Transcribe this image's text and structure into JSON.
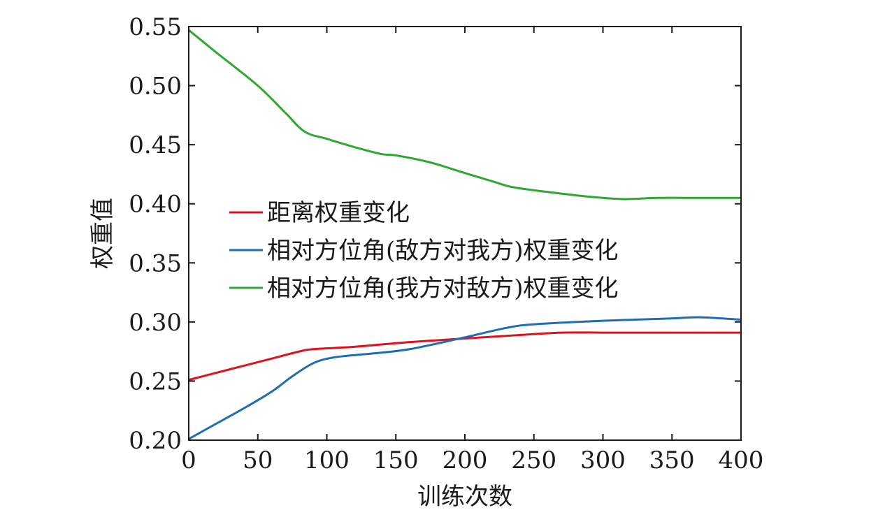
{
  "chart_data": {
    "type": "line",
    "xlabel": "训练次数",
    "ylabel": "权重值",
    "xlim": [
      0,
      400
    ],
    "ylim": [
      0.2,
      0.55
    ],
    "xticks": [
      0,
      50,
      100,
      150,
      200,
      250,
      300,
      350,
      400
    ],
    "yticks": [
      "0.20",
      "0.25",
      "0.30",
      "0.35",
      "0.40",
      "0.45",
      "0.50",
      "0.55"
    ],
    "grid": false,
    "legend_position": "center-left",
    "series": [
      {
        "name": "距离权重变化",
        "color": "#e0101e",
        "points": [
          [
            0,
            0.251
          ],
          [
            20,
            0.257
          ],
          [
            40,
            0.263
          ],
          [
            60,
            0.269
          ],
          [
            80,
            0.275
          ],
          [
            90,
            0.277
          ],
          [
            120,
            0.279
          ],
          [
            160,
            0.283
          ],
          [
            200,
            0.286
          ],
          [
            240,
            0.289
          ],
          [
            270,
            0.291
          ],
          [
            300,
            0.291
          ],
          [
            350,
            0.291
          ],
          [
            400,
            0.291
          ]
        ]
      },
      {
        "name": "相对方位角(敌方对我方)权重变化",
        "color": "#1f6db5",
        "points": [
          [
            0,
            0.201
          ],
          [
            20,
            0.214
          ],
          [
            40,
            0.227
          ],
          [
            60,
            0.241
          ],
          [
            75,
            0.254
          ],
          [
            90,
            0.265
          ],
          [
            105,
            0.27
          ],
          [
            130,
            0.273
          ],
          [
            160,
            0.277
          ],
          [
            200,
            0.287
          ],
          [
            230,
            0.295
          ],
          [
            250,
            0.298
          ],
          [
            300,
            0.301
          ],
          [
            350,
            0.303
          ],
          [
            370,
            0.304
          ],
          [
            400,
            0.302
          ]
        ]
      },
      {
        "name": "相对方位角(我方对敌方)权重变化",
        "color": "#2fa832",
        "points": [
          [
            0,
            0.547
          ],
          [
            20,
            0.528
          ],
          [
            50,
            0.5
          ],
          [
            70,
            0.477
          ],
          [
            84,
            0.461
          ],
          [
            100,
            0.455
          ],
          [
            120,
            0.448
          ],
          [
            140,
            0.442
          ],
          [
            150,
            0.441
          ],
          [
            175,
            0.435
          ],
          [
            200,
            0.426
          ],
          [
            220,
            0.419
          ],
          [
            235,
            0.414
          ],
          [
            260,
            0.41
          ],
          [
            290,
            0.406
          ],
          [
            315,
            0.404
          ],
          [
            340,
            0.405
          ],
          [
            370,
            0.405
          ],
          [
            400,
            0.405
          ]
        ]
      }
    ]
  }
}
